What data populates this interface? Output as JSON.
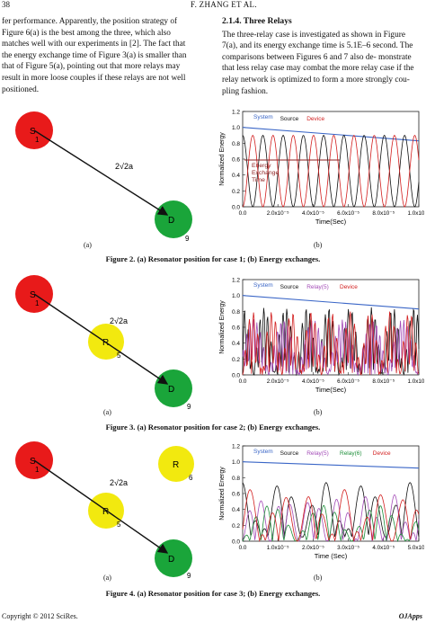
{
  "header": {
    "page_number": "38",
    "running_title": "F. ZHANG   ET   AL."
  },
  "left_column": {
    "lines": [
      "fer performance. Apparently, the position strategy of",
      "Figure 6(a) is the best among the three, which also",
      "matches well with our experiments in [2]. The fact that",
      "the energy exchange time of Figure 3(a) is smaller than",
      "that of Figure 5(a), pointing out that more relays may",
      "result in more loose couples if these relays are not well",
      "positioned."
    ]
  },
  "right_column": {
    "section_heading": "2.1.4. Three Relays",
    "lines": [
      "The three-relay case is investigated as shown in Figure",
      "7(a), and its energy exchange time is 5.1E–6 second. The",
      "comparisons between Figures 6 and 7 also de- monstrate",
      "that less relay case may combat the more relay case if the",
      "relay network is optimized to form a more strongly cou-",
      "pling fashion."
    ]
  },
  "figures": [
    {
      "caption": "Figure 2. (a) Resonator position for case 1; (b) Energy exchanges.",
      "panel_a": {
        "label": "(a)",
        "node_s": "S",
        "node_d": "D",
        "s_num": "1",
        "d_num": "9",
        "distance": "2√2a"
      },
      "panel_b": {
        "label": "(b)",
        "legend": [
          "System",
          "Source",
          "Device"
        ],
        "annotation": "Energy Exchange Time"
      }
    },
    {
      "caption": "Figure 3. (a) Resonator position for case 2; (b) Energy exchanges.",
      "panel_a": {
        "label": "(a)",
        "node_s": "S",
        "node_r": "R",
        "node_d": "D",
        "s_num": "1",
        "r_num": "5",
        "d_num": "9",
        "distance": "2√2a"
      },
      "panel_b": {
        "label": "(b)",
        "legend": [
          "System",
          "Source",
          "Relay(5)",
          "Device"
        ]
      }
    },
    {
      "caption": "Figure 4. (a) Resonator position for case 3; (b) Energy exchanges.",
      "panel_a": {
        "label": "(a)",
        "node_s": "S",
        "node_r": "R",
        "node_r2": "R",
        "node_d": "D",
        "s_num": "1",
        "r_num": "5",
        "r2_num": "6",
        "d_num": "9",
        "distance": "2√2a"
      },
      "panel_b": {
        "label": "(b)",
        "legend": [
          "System",
          "Source",
          "Relay(5)",
          "Relay(6)",
          "Device"
        ]
      }
    }
  ],
  "chart_data": [
    {
      "type": "line",
      "title": "",
      "xlabel": "Time(Sec)",
      "ylabel": "Normalized Energy",
      "xlim": [
        0,
        0.0001
      ],
      "ylim": [
        0,
        1.2
      ],
      "xticks": [
        "0.0",
        "2.0x10⁻⁵",
        "4.0x10⁻⁵",
        "6.0x10⁻⁵",
        "8.0x10⁻⁵",
        "1.0x10⁻⁴"
      ],
      "yticks": [
        "0.0",
        "0.2",
        "0.4",
        "0.6",
        "0.8",
        "1.0",
        "1.2"
      ],
      "series": [
        {
          "name": "System",
          "color": "#3a66c7",
          "x": [
            0,
            0.0001
          ],
          "y": [
            1.0,
            0.83
          ]
        },
        {
          "name": "Source",
          "color": "#111111"
        },
        {
          "name": "Device",
          "color": "#d21e1e"
        }
      ],
      "annotations": [
        "Energy Exchange Time"
      ]
    },
    {
      "type": "line",
      "title": "",
      "xlabel": "Time(Sec)",
      "ylabel": "Normalized Energy",
      "xlim": [
        0,
        0.0001
      ],
      "ylim": [
        0,
        1.2
      ],
      "xticks": [
        "0.0",
        "2.0x10⁻⁵",
        "4.0x10⁻⁵",
        "6.0x10⁻⁵",
        "8.0x10⁻⁵",
        "1.0x10⁻⁴"
      ],
      "yticks": [
        "0.0",
        "0.2",
        "0.4",
        "0.6",
        "0.8",
        "1.0",
        "1.2"
      ],
      "series": [
        {
          "name": "System",
          "color": "#3a66c7",
          "x": [
            0,
            0.0001
          ],
          "y": [
            1.0,
            0.83
          ]
        },
        {
          "name": "Source",
          "color": "#111111"
        },
        {
          "name": "Relay(5)",
          "color": "#a34bb7"
        },
        {
          "name": "Device",
          "color": "#d21e1e"
        }
      ]
    },
    {
      "type": "line",
      "title": "",
      "xlabel": "Time (Sec)",
      "ylabel": "Normalized Energy",
      "xlim": [
        0,
        5e-05
      ],
      "ylim": [
        0,
        1.2
      ],
      "xticks": [
        "0.0",
        "1.0x10⁻⁵",
        "2.0x10⁻⁵",
        "3.0x10⁻⁵",
        "4.0x10⁻⁵",
        "5.0x10⁻⁵"
      ],
      "yticks": [
        "0.0",
        "0.2",
        "0.4",
        "0.6",
        "0.8",
        "1.0",
        "1.2"
      ],
      "series": [
        {
          "name": "System",
          "color": "#3a66c7",
          "x": [
            0,
            5e-05
          ],
          "y": [
            1.0,
            0.92
          ]
        },
        {
          "name": "Source",
          "color": "#111111"
        },
        {
          "name": "Relay(5)",
          "color": "#a34bb7"
        },
        {
          "name": "Relay(6)",
          "color": "#1e8f3a"
        },
        {
          "name": "Device",
          "color": "#d21e1e"
        }
      ]
    }
  ],
  "footer": {
    "copyright": "Copyright © 2012 SciRes.",
    "journal": "OJApps"
  }
}
